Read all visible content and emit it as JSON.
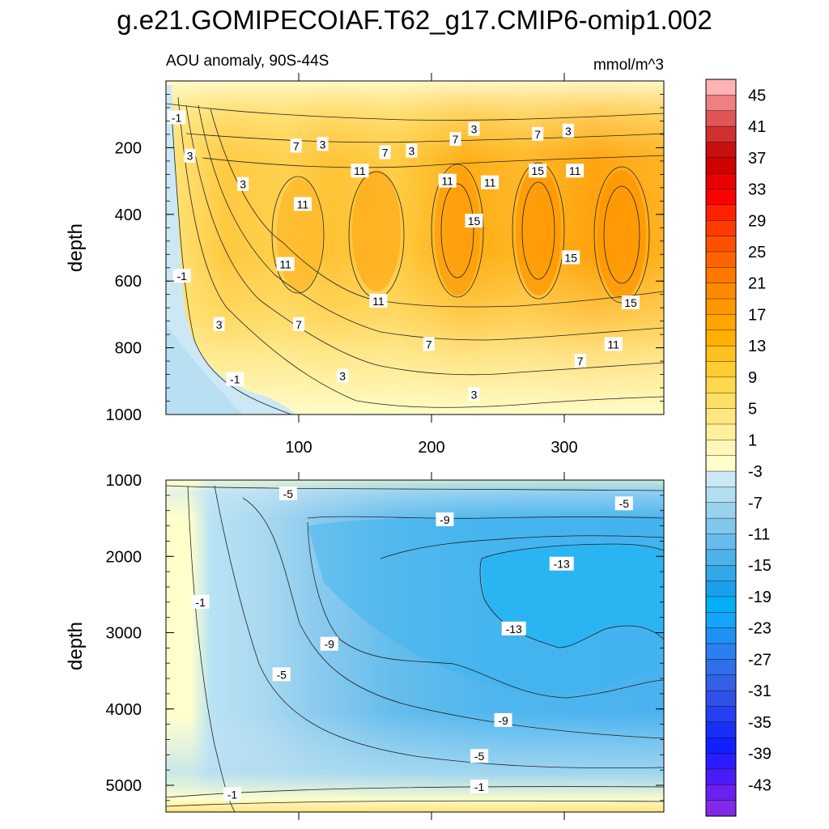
{
  "title": "g.e21.GOMIPECOIAF.T62_g17.CMIP6-omip1.002",
  "chart_data": [
    {
      "type": "heatmap",
      "panel": "upper",
      "subtitle_left": "AOU anomaly, 90S-44S",
      "subtitle_right": "mmol/m^3",
      "xlabel": "",
      "ylabel": "depth",
      "xlim": [
        0,
        375
      ],
      "ylim": [
        1000,
        0
      ],
      "xticks": [
        100,
        200,
        300
      ],
      "yticks": [
        200,
        400,
        600,
        800,
        1000
      ],
      "grid": false,
      "contour_labels": [
        {
          "text": "-1",
          "x": 8,
          "y": 110
        },
        {
          "text": "3",
          "x": 18,
          "y": 225
        },
        {
          "text": "3",
          "x": 58,
          "y": 310
        },
        {
          "text": "7",
          "x": 98,
          "y": 195
        },
        {
          "text": "3",
          "x": 118,
          "y": 190
        },
        {
          "text": "11",
          "x": 103,
          "y": 370
        },
        {
          "text": "7",
          "x": 165,
          "y": 215
        },
        {
          "text": "3",
          "x": 185,
          "y": 210
        },
        {
          "text": "11",
          "x": 146,
          "y": 270
        },
        {
          "text": "11",
          "x": 212,
          "y": 300
        },
        {
          "text": "7",
          "x": 218,
          "y": 175
        },
        {
          "text": "3",
          "x": 232,
          "y": 145
        },
        {
          "text": "11",
          "x": 244,
          "y": 305
        },
        {
          "text": "15",
          "x": 232,
          "y": 420
        },
        {
          "text": "7",
          "x": 280,
          "y": 160
        },
        {
          "text": "3",
          "x": 303,
          "y": 150
        },
        {
          "text": "15",
          "x": 280,
          "y": 270
        },
        {
          "text": "11",
          "x": 308,
          "y": 270
        },
        {
          "text": "11",
          "x": 90,
          "y": 550
        },
        {
          "text": "-1",
          "x": 12,
          "y": 585
        },
        {
          "text": "15",
          "x": 305,
          "y": 530
        },
        {
          "text": "11",
          "x": 160,
          "y": 660
        },
        {
          "text": "15",
          "x": 350,
          "y": 665
        },
        {
          "text": "3",
          "x": 40,
          "y": 730
        },
        {
          "text": "7",
          "x": 100,
          "y": 730
        },
        {
          "text": "7",
          "x": 198,
          "y": 790
        },
        {
          "text": "11",
          "x": 337,
          "y": 790
        },
        {
          "text": "7",
          "x": 312,
          "y": 840
        },
        {
          "text": "-1",
          "x": 52,
          "y": 895
        },
        {
          "text": "3",
          "x": 133,
          "y": 885
        },
        {
          "text": "3",
          "x": 232,
          "y": 940
        }
      ]
    },
    {
      "type": "heatmap",
      "panel": "lower",
      "xlabel": "",
      "ylabel": "depth",
      "xlim": [
        0,
        375
      ],
      "ylim": [
        5350,
        1000
      ],
      "yticks": [
        1000,
        2000,
        3000,
        4000,
        5000
      ],
      "grid": false,
      "contour_labels": [
        {
          "text": "-5",
          "x": 92,
          "y": 1180
        },
        {
          "text": "-9",
          "x": 210,
          "y": 1520
        },
        {
          "text": "-5",
          "x": 345,
          "y": 1310
        },
        {
          "text": "-13",
          "x": 298,
          "y": 2100
        },
        {
          "text": "-1",
          "x": 26,
          "y": 2600
        },
        {
          "text": "-13",
          "x": 262,
          "y": 2950
        },
        {
          "text": "-9",
          "x": 123,
          "y": 3150
        },
        {
          "text": "-5",
          "x": 87,
          "y": 3550
        },
        {
          "text": "-9",
          "x": 254,
          "y": 4150
        },
        {
          "text": "-5",
          "x": 236,
          "y": 4620
        },
        {
          "text": "-1",
          "x": 236,
          "y": 5020
        },
        {
          "text": "-1",
          "x": 50,
          "y": 5120
        }
      ]
    }
  ],
  "colorbar": {
    "labels": [
      "45",
      "41",
      "37",
      "33",
      "29",
      "25",
      "21",
      "17",
      "13",
      "9",
      "5",
      "1",
      "-3",
      "-7",
      "-11",
      "-15",
      "-19",
      "-23",
      "-27",
      "-31",
      "-35",
      "-39",
      "-43"
    ],
    "colors": [
      "#ffb3b3",
      "#f08080",
      "#e05555",
      "#d03030",
      "#c81010",
      "#d00000",
      "#e80000",
      "#ff0000",
      "#ff2200",
      "#ff3c00",
      "#ff5000",
      "#ff6400",
      "#ff7800",
      "#ff8a00",
      "#ff9800",
      "#ffa500",
      "#ffb000",
      "#ffc020",
      "#ffcc33",
      "#ffd84d",
      "#ffe066",
      "#ffe880",
      "#fff099",
      "#fff6b8",
      "#ffffcc",
      "#cce8f4",
      "#b3ddf0",
      "#99d2ee",
      "#80c7ec",
      "#66bcea",
      "#4db2e8",
      "#33a8e8",
      "#1aa0ea",
      "#00b0f5",
      "#14a4f8",
      "#1f90f5",
      "#2a80f0",
      "#2f70ea",
      "#3360e5",
      "#3050e8",
      "#2540f0",
      "#1830f5",
      "#1020ff",
      "#2a1cff",
      "#4a1cf5",
      "#6a20ee",
      "#8228e8"
    ]
  }
}
